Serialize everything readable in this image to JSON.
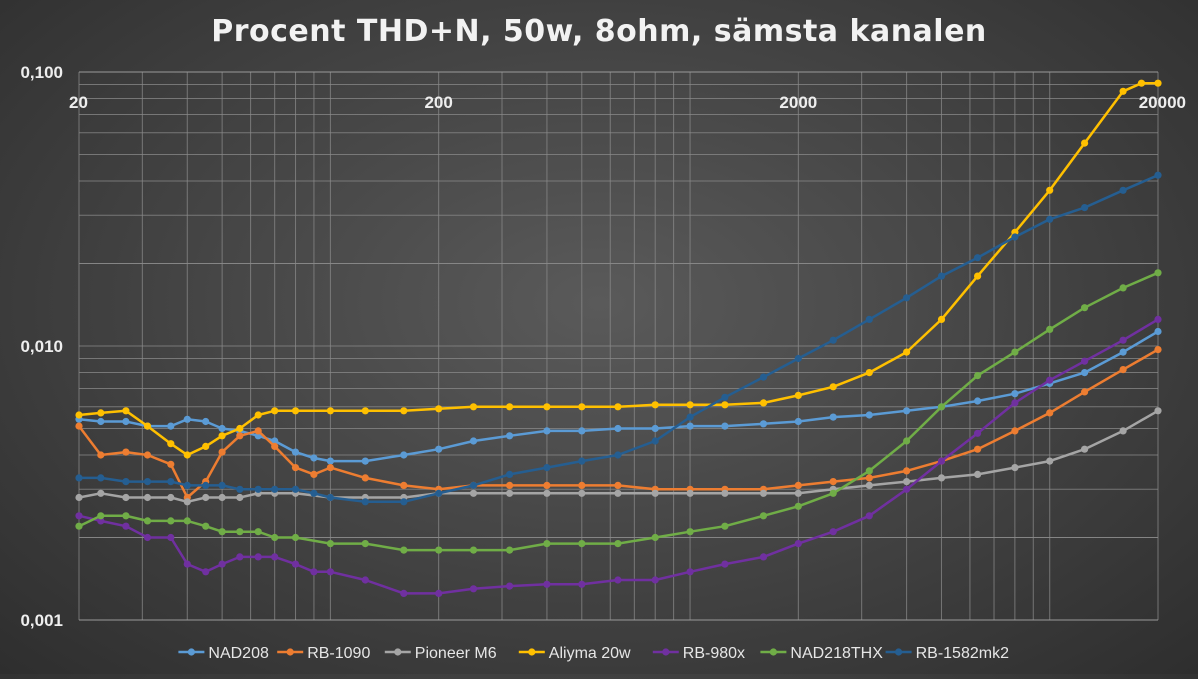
{
  "chart_data": {
    "type": "line",
    "title": "Procent THD+N, 50w, 8ohm, sämsta kanalen",
    "xlabel": "",
    "ylabel": "",
    "x_scale": "log",
    "y_scale": "log",
    "xlim": [
      20,
      20000
    ],
    "ylim": [
      0.001,
      0.1
    ],
    "x_ticks": [
      20,
      200,
      2000,
      20000
    ],
    "x_tick_labels": [
      "20",
      "200",
      "2000",
      "20000"
    ],
    "y_ticks": [
      0.1,
      0.01,
      0.001
    ],
    "y_tick_labels": [
      "0,100",
      "0,010",
      "0,001"
    ],
    "grid": true,
    "legend_position": "bottom",
    "series": [
      {
        "name": "NAD208",
        "color": "#5b9bd5",
        "points": [
          [
            20,
            0.0054
          ],
          [
            23,
            0.0053
          ],
          [
            27,
            0.0053
          ],
          [
            31,
            0.0051
          ],
          [
            36,
            0.0051
          ],
          [
            40,
            0.0054
          ],
          [
            45,
            0.0053
          ],
          [
            50,
            0.005
          ],
          [
            56,
            0.0049
          ],
          [
            63,
            0.0047
          ],
          [
            70,
            0.0045
          ],
          [
            80,
            0.0041
          ],
          [
            90,
            0.0039
          ],
          [
            100,
            0.0038
          ],
          [
            125,
            0.0038
          ],
          [
            160,
            0.004
          ],
          [
            200,
            0.0042
          ],
          [
            250,
            0.0045
          ],
          [
            315,
            0.0047
          ],
          [
            400,
            0.0049
          ],
          [
            500,
            0.0049
          ],
          [
            630,
            0.005
          ],
          [
            800,
            0.005
          ],
          [
            1000,
            0.0051
          ],
          [
            1250,
            0.0051
          ],
          [
            1600,
            0.0052
          ],
          [
            2000,
            0.0053
          ],
          [
            2500,
            0.0055
          ],
          [
            3150,
            0.0056
          ],
          [
            4000,
            0.0058
          ],
          [
            5000,
            0.006
          ],
          [
            6300,
            0.0063
          ],
          [
            8000,
            0.0067
          ],
          [
            10000,
            0.0073
          ],
          [
            12500,
            0.008
          ],
          [
            16000,
            0.0095
          ],
          [
            20000,
            0.0113
          ]
        ]
      },
      {
        "name": "RB-1090",
        "color": "#ed7d31",
        "points": [
          [
            20,
            0.0051
          ],
          [
            23,
            0.004
          ],
          [
            27,
            0.0041
          ],
          [
            31,
            0.004
          ],
          [
            36,
            0.0037
          ],
          [
            40,
            0.0028
          ],
          [
            45,
            0.0032
          ],
          [
            50,
            0.0041
          ],
          [
            56,
            0.0047
          ],
          [
            63,
            0.0049
          ],
          [
            70,
            0.0043
          ],
          [
            80,
            0.0036
          ],
          [
            90,
            0.0034
          ],
          [
            100,
            0.0036
          ],
          [
            125,
            0.0033
          ],
          [
            160,
            0.0031
          ],
          [
            200,
            0.003
          ],
          [
            250,
            0.0031
          ],
          [
            315,
            0.0031
          ],
          [
            400,
            0.0031
          ],
          [
            500,
            0.0031
          ],
          [
            630,
            0.0031
          ],
          [
            800,
            0.003
          ],
          [
            1000,
            0.003
          ],
          [
            1250,
            0.003
          ],
          [
            1600,
            0.003
          ],
          [
            2000,
            0.0031
          ],
          [
            2500,
            0.0032
          ],
          [
            3150,
            0.0033
          ],
          [
            4000,
            0.0035
          ],
          [
            5000,
            0.0038
          ],
          [
            6300,
            0.0042
          ],
          [
            8000,
            0.0049
          ],
          [
            10000,
            0.0057
          ],
          [
            12500,
            0.0068
          ],
          [
            16000,
            0.0082
          ],
          [
            20000,
            0.0097
          ]
        ]
      },
      {
        "name": "Pioneer M6",
        "color": "#a5a5a5",
        "points": [
          [
            20,
            0.0028
          ],
          [
            23,
            0.0029
          ],
          [
            27,
            0.0028
          ],
          [
            31,
            0.0028
          ],
          [
            36,
            0.0028
          ],
          [
            40,
            0.0027
          ],
          [
            45,
            0.0028
          ],
          [
            50,
            0.0028
          ],
          [
            56,
            0.0028
          ],
          [
            63,
            0.0029
          ],
          [
            70,
            0.0029
          ],
          [
            80,
            0.0029
          ],
          [
            100,
            0.0028
          ],
          [
            125,
            0.0028
          ],
          [
            160,
            0.0028
          ],
          [
            200,
            0.0029
          ],
          [
            250,
            0.0029
          ],
          [
            315,
            0.0029
          ],
          [
            400,
            0.0029
          ],
          [
            500,
            0.0029
          ],
          [
            630,
            0.0029
          ],
          [
            800,
            0.0029
          ],
          [
            1000,
            0.0029
          ],
          [
            1250,
            0.0029
          ],
          [
            1600,
            0.0029
          ],
          [
            2000,
            0.0029
          ],
          [
            2500,
            0.003
          ],
          [
            3150,
            0.0031
          ],
          [
            4000,
            0.0032
          ],
          [
            5000,
            0.0033
          ],
          [
            6300,
            0.0034
          ],
          [
            8000,
            0.0036
          ],
          [
            10000,
            0.0038
          ],
          [
            12500,
            0.0042
          ],
          [
            16000,
            0.0049
          ],
          [
            20000,
            0.0058
          ]
        ]
      },
      {
        "name": "Aliyma 20w",
        "color": "#ffc000",
        "points": [
          [
            20,
            0.0056
          ],
          [
            23,
            0.0057
          ],
          [
            27,
            0.0058
          ],
          [
            31,
            0.0051
          ],
          [
            36,
            0.0044
          ],
          [
            40,
            0.004
          ],
          [
            45,
            0.0043
          ],
          [
            50,
            0.0047
          ],
          [
            56,
            0.005
          ],
          [
            63,
            0.0056
          ],
          [
            70,
            0.0058
          ],
          [
            80,
            0.0058
          ],
          [
            100,
            0.0058
          ],
          [
            125,
            0.0058
          ],
          [
            160,
            0.0058
          ],
          [
            200,
            0.0059
          ],
          [
            250,
            0.006
          ],
          [
            315,
            0.006
          ],
          [
            400,
            0.006
          ],
          [
            500,
            0.006
          ],
          [
            630,
            0.006
          ],
          [
            800,
            0.0061
          ],
          [
            1000,
            0.0061
          ],
          [
            1250,
            0.0061
          ],
          [
            1600,
            0.0062
          ],
          [
            2000,
            0.0066
          ],
          [
            2500,
            0.0071
          ],
          [
            3150,
            0.008
          ],
          [
            4000,
            0.0095
          ],
          [
            5000,
            0.0125
          ],
          [
            6300,
            0.018
          ],
          [
            8000,
            0.026
          ],
          [
            10000,
            0.037
          ],
          [
            12500,
            0.055
          ],
          [
            16000,
            0.085
          ],
          [
            18000,
            0.091
          ],
          [
            20000,
            0.091
          ]
        ]
      },
      {
        "name": "RB-980x",
        "color": "#7030a0",
        "points": [
          [
            20,
            0.0024
          ],
          [
            23,
            0.0023
          ],
          [
            27,
            0.0022
          ],
          [
            31,
            0.002
          ],
          [
            36,
            0.002
          ],
          [
            40,
            0.0016
          ],
          [
            45,
            0.0015
          ],
          [
            50,
            0.0016
          ],
          [
            56,
            0.0017
          ],
          [
            63,
            0.0017
          ],
          [
            70,
            0.0017
          ],
          [
            80,
            0.0016
          ],
          [
            90,
            0.0015
          ],
          [
            100,
            0.0015
          ],
          [
            125,
            0.0014
          ],
          [
            160,
            0.00125
          ],
          [
            200,
            0.00125
          ],
          [
            250,
            0.0013
          ],
          [
            315,
            0.00133
          ],
          [
            400,
            0.00135
          ],
          [
            500,
            0.00135
          ],
          [
            630,
            0.0014
          ],
          [
            800,
            0.0014
          ],
          [
            1000,
            0.0015
          ],
          [
            1250,
            0.0016
          ],
          [
            1600,
            0.0017
          ],
          [
            2000,
            0.0019
          ],
          [
            2500,
            0.0021
          ],
          [
            3150,
            0.0024
          ],
          [
            4000,
            0.003
          ],
          [
            5000,
            0.0038
          ],
          [
            6300,
            0.0048
          ],
          [
            8000,
            0.0062
          ],
          [
            10000,
            0.0075
          ],
          [
            12500,
            0.0088
          ],
          [
            16000,
            0.0105
          ],
          [
            20000,
            0.0125
          ]
        ]
      },
      {
        "name": "NAD218THX",
        "color": "#70ad47",
        "points": [
          [
            20,
            0.0022
          ],
          [
            23,
            0.0024
          ],
          [
            27,
            0.0024
          ],
          [
            31,
            0.0023
          ],
          [
            36,
            0.0023
          ],
          [
            40,
            0.0023
          ],
          [
            45,
            0.0022
          ],
          [
            50,
            0.0021
          ],
          [
            56,
            0.0021
          ],
          [
            63,
            0.0021
          ],
          [
            70,
            0.002
          ],
          [
            80,
            0.002
          ],
          [
            100,
            0.0019
          ],
          [
            125,
            0.0019
          ],
          [
            160,
            0.0018
          ],
          [
            200,
            0.0018
          ],
          [
            250,
            0.0018
          ],
          [
            315,
            0.0018
          ],
          [
            400,
            0.0019
          ],
          [
            500,
            0.0019
          ],
          [
            630,
            0.0019
          ],
          [
            800,
            0.002
          ],
          [
            1000,
            0.0021
          ],
          [
            1250,
            0.0022
          ],
          [
            1600,
            0.0024
          ],
          [
            2000,
            0.0026
          ],
          [
            2500,
            0.0029
          ],
          [
            3150,
            0.0035
          ],
          [
            4000,
            0.0045
          ],
          [
            5000,
            0.006
          ],
          [
            6300,
            0.0078
          ],
          [
            8000,
            0.0095
          ],
          [
            10000,
            0.0115
          ],
          [
            12500,
            0.0138
          ],
          [
            16000,
            0.0163
          ],
          [
            20000,
            0.0185
          ]
        ]
      },
      {
        "name": "RB-1582mk2",
        "color": "#255e91",
        "points": [
          [
            20,
            0.0033
          ],
          [
            23,
            0.0033
          ],
          [
            27,
            0.0032
          ],
          [
            31,
            0.0032
          ],
          [
            36,
            0.0032
          ],
          [
            40,
            0.0031
          ],
          [
            45,
            0.0031
          ],
          [
            50,
            0.0031
          ],
          [
            56,
            0.003
          ],
          [
            63,
            0.003
          ],
          [
            70,
            0.003
          ],
          [
            80,
            0.003
          ],
          [
            90,
            0.0029
          ],
          [
            100,
            0.0028
          ],
          [
            125,
            0.0027
          ],
          [
            160,
            0.0027
          ],
          [
            200,
            0.0029
          ],
          [
            250,
            0.0031
          ],
          [
            315,
            0.0034
          ],
          [
            400,
            0.0036
          ],
          [
            500,
            0.0038
          ],
          [
            630,
            0.004
          ],
          [
            800,
            0.0045
          ],
          [
            1000,
            0.0055
          ],
          [
            1250,
            0.0065
          ],
          [
            1600,
            0.0077
          ],
          [
            2000,
            0.009
          ],
          [
            2500,
            0.0105
          ],
          [
            3150,
            0.0125
          ],
          [
            4000,
            0.015
          ],
          [
            5000,
            0.018
          ],
          [
            6300,
            0.021
          ],
          [
            8000,
            0.025
          ],
          [
            10000,
            0.029
          ],
          [
            12500,
            0.032
          ],
          [
            16000,
            0.037
          ],
          [
            20000,
            0.042
          ]
        ]
      }
    ]
  }
}
